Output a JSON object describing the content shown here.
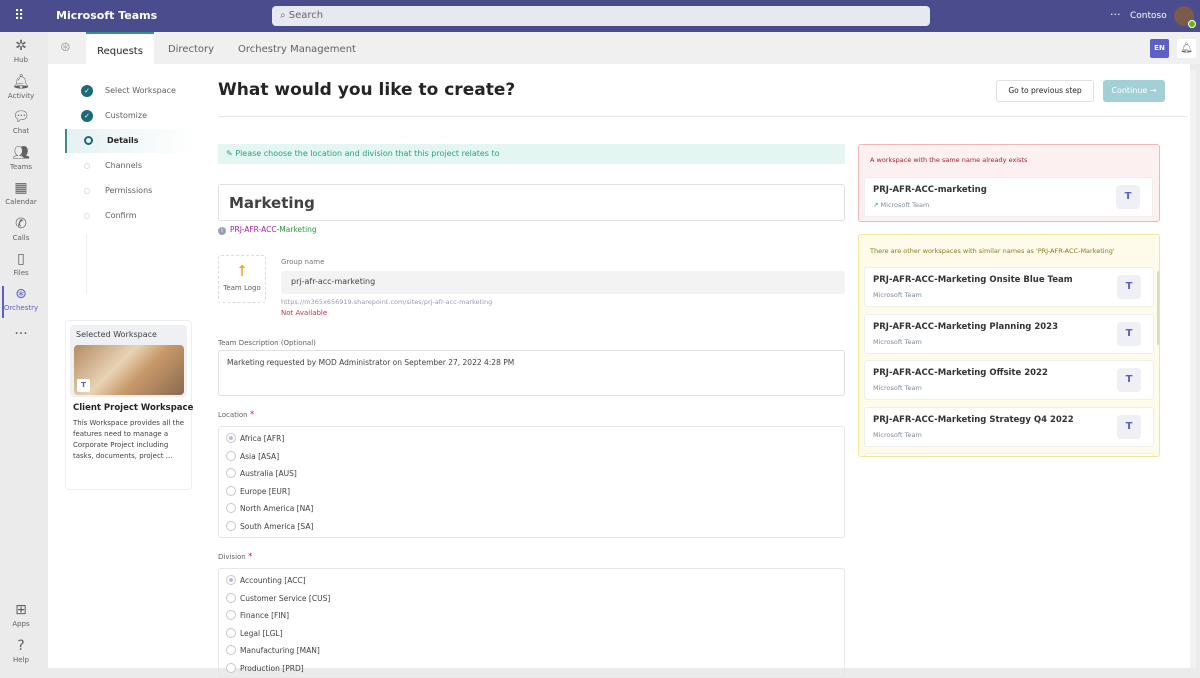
{
  "topbar": {
    "app_name": "Microsoft Teams",
    "search_placeholder": "Search",
    "org": "Contoso",
    "more": "···",
    "waffle": "⠿"
  },
  "rail": [
    {
      "label": "Hub",
      "icon": "hub-icon",
      "glyph": "✲"
    },
    {
      "label": "Activity",
      "icon": "bell-icon",
      "glyph": "🔔︎"
    },
    {
      "label": "Chat",
      "icon": "chat-icon",
      "glyph": "💬︎"
    },
    {
      "label": "Teams",
      "icon": "teams-icon",
      "glyph": "👥︎"
    },
    {
      "label": "Calendar",
      "icon": "calendar-icon",
      "glyph": "▦"
    },
    {
      "label": "Calls",
      "icon": "phone-icon",
      "glyph": "✆"
    },
    {
      "label": "Files",
      "icon": "file-icon",
      "glyph": "▯"
    },
    {
      "label": "Orchestry",
      "icon": "orchestry-icon",
      "glyph": "⊛"
    },
    {
      "label": "",
      "icon": "more-icon",
      "glyph": "···"
    },
    {
      "label": "Apps",
      "icon": "apps-icon",
      "glyph": "⊞"
    },
    {
      "label": "Help",
      "icon": "help-icon",
      "glyph": "?"
    }
  ],
  "tabs": {
    "items": [
      "Requests",
      "Directory",
      "Orchestry Management"
    ],
    "active": "Requests",
    "lang": "EN"
  },
  "steps": [
    {
      "label": "Select Workspace",
      "state": "done"
    },
    {
      "label": "Customize",
      "state": "done"
    },
    {
      "label": "Details",
      "state": "current"
    },
    {
      "label": "Channels",
      "state": "todo"
    },
    {
      "label": "Permissions",
      "state": "todo"
    },
    {
      "label": "Confirm",
      "state": "todo"
    }
  ],
  "selected_workspace": {
    "heading": "Selected Workspace",
    "title": "Client Project Workspace",
    "description": "This Workspace provides all the features need to manage a Corporate Project including tasks, documents, project ..."
  },
  "page": {
    "title": "What would you like to create?",
    "prev_button": "Go to previous step",
    "continue_button": "Continue",
    "continue_arrow": "→",
    "hint": "Please choose the location and division that this project relates to",
    "name": "Marketing",
    "prefix": "PRJ-AFR-ACC-",
    "prefix_name": "Marketing",
    "team_logo": "Team Logo",
    "group_name_label": "Group name",
    "group_name": "prj-afr-acc-marketing",
    "url": "https://m365x656919.sharepoint.com/sites/prj-afr-acc-marketing",
    "availability": "Not Available",
    "description_label": "Team Description (Optional)",
    "description": "Marketing requested by MOD Administrator on September 27, 2022 4:28 PM",
    "location_label": "Location",
    "division_label": "Division",
    "required": "*"
  },
  "locations": [
    {
      "label": "Africa [AFR]",
      "selected": true
    },
    {
      "label": "Asia [ASA]"
    },
    {
      "label": "Australia [AUS]"
    },
    {
      "label": "Europe [EUR]"
    },
    {
      "label": "North America [NA]"
    },
    {
      "label": "South America [SA]"
    }
  ],
  "divisions": [
    {
      "label": "Accounting [ACC]",
      "selected": true
    },
    {
      "label": "Customer Service [CUS]"
    },
    {
      "label": "Finance [FIN]"
    },
    {
      "label": "Legal [LGL]"
    },
    {
      "label": "Manufacturing [MAN]"
    },
    {
      "label": "Production [PRD]"
    }
  ],
  "exists_panel": {
    "title": "A workspace with the same name already exists",
    "card": {
      "name": "PRJ-AFR-ACC-marketing",
      "type": "Microsoft Team"
    }
  },
  "similar_panel": {
    "title": "There are other workspaces with similar names as 'PRJ-AFR-ACC-Marketing'",
    "cards": [
      {
        "name": "PRJ-AFR-ACC-Marketing Onsite Blue Team",
        "type": "Microsoft Team"
      },
      {
        "name": "PRJ-AFR-ACC-Marketing Planning 2023",
        "type": "Microsoft Team"
      },
      {
        "name": "PRJ-AFR-ACC-Marketing Offsite 2022",
        "type": "Microsoft Team"
      },
      {
        "name": "PRJ-AFR-ACC-Marketing Strategy Q4 2022",
        "type": "Microsoft Team"
      }
    ]
  },
  "colors": {
    "topbar": "#4b4c8e",
    "accent": "#1b6b77",
    "teams": "#5b5fc7",
    "error": "#c4314b"
  }
}
